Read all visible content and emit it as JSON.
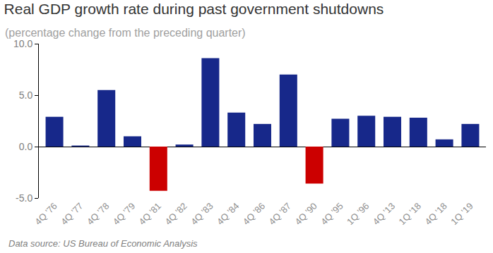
{
  "chart_data": {
    "type": "bar",
    "title": "Real GDP growth rate during past government shutdowns",
    "subtitle": "(percentage change from the preceding quarter)",
    "annotations": [
      "Data source: US Bureau of Economic Analysis"
    ],
    "categories": [
      "4Q '76",
      "4Q '77",
      "4Q '78",
      "4Q '79",
      "4Q '81",
      "4Q '82",
      "4Q '83",
      "4Q '84",
      "4Q '86",
      "4Q '87",
      "4Q '90",
      "4Q '95",
      "1Q '96",
      "4Q '13",
      "1Q '18",
      "4Q '18",
      "1Q '19"
    ],
    "values": [
      2.9,
      0.1,
      5.5,
      1.0,
      -4.3,
      0.2,
      8.6,
      3.3,
      2.2,
      7.0,
      -3.6,
      2.7,
      3.0,
      2.9,
      2.8,
      0.7,
      2.2
    ],
    "colors": [
      "#17288a",
      "#17288a",
      "#17288a",
      "#17288a",
      "#cc0000",
      "#17288a",
      "#17288a",
      "#17288a",
      "#17288a",
      "#17288a",
      "#cc0000",
      "#17288a",
      "#17288a",
      "#17288a",
      "#17288a",
      "#17288a",
      "#17288a"
    ],
    "ylim": [
      -5,
      10
    ],
    "yticks": [
      {
        "value": -5,
        "label": "-5.0"
      },
      {
        "value": 0,
        "label": "0.0"
      },
      {
        "value": 5,
        "label": "5.0"
      },
      {
        "value": 10,
        "label": "10.0"
      }
    ],
    "grid": false
  }
}
